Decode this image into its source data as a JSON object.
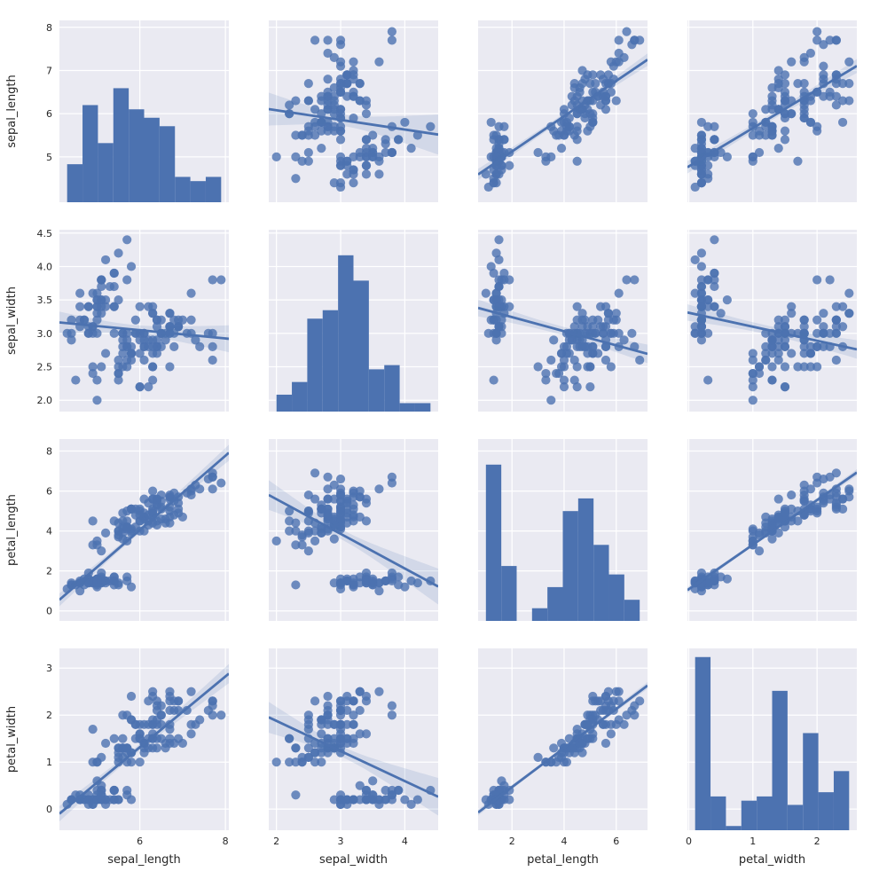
{
  "style": {
    "figure_bg": "#ffffff",
    "axes_bg": "#eaeaf2",
    "grid_color": "#ffffff",
    "grid_width": 1.25,
    "accent": "#4c72b0",
    "text_color": "#262626",
    "point_radius": 5.1,
    "point_alpha": 0.8,
    "line_width": 2.8,
    "band_alpha": 0.15,
    "tick_font_size": 11,
    "label_font_size": 13
  },
  "chart_data": {
    "type": "scatter",
    "subtype": "pairplot-regression",
    "title": "",
    "diag": "hist",
    "offdiag": "scatter+regression+ci",
    "hist_bins": 10,
    "diag_count_max": 43.05,
    "legend": null,
    "grid": true,
    "variables": [
      "sepal_length",
      "sepal_width",
      "petal_length",
      "petal_width"
    ],
    "axes": {
      "sepal_length": {
        "label": "sepal_length",
        "x_range": [
          4.12,
          8.08
        ],
        "y_range": [
          3.95,
          8.16
        ],
        "x_ticks": [
          6,
          8
        ],
        "x_tick_labels": [
          "6",
          "8"
        ],
        "y_ticks": [
          5,
          6,
          7,
          8
        ],
        "y_tick_labels": [
          "5",
          "6",
          "7",
          "8"
        ]
      },
      "sepal_width": {
        "label": "sepal_width",
        "x_range": [
          1.88,
          4.52
        ],
        "y_range": [
          1.83,
          4.55
        ],
        "x_ticks": [
          2,
          3,
          4
        ],
        "x_tick_labels": [
          "2",
          "3",
          "4"
        ],
        "y_ticks": [
          2.0,
          2.5,
          3.0,
          3.5,
          4.0,
          4.5
        ],
        "y_tick_labels": [
          "2.0",
          "2.5",
          "3.0",
          "3.5",
          "4.0",
          "4.5"
        ]
      },
      "petal_length": {
        "label": "petal_length",
        "x_range": [
          0.7,
          7.2
        ],
        "y_range": [
          -0.5,
          8.6
        ],
        "x_ticks": [
          2,
          4,
          6
        ],
        "x_tick_labels": [
          "2",
          "4",
          "6"
        ],
        "y_ticks": [
          0,
          2,
          4,
          6,
          8
        ],
        "y_tick_labels": [
          "0",
          "2",
          "4",
          "6",
          "8"
        ]
      },
      "petal_width": {
        "label": "petal_width",
        "x_range": [
          -0.02,
          2.62
        ],
        "y_range": [
          -0.45,
          3.42
        ],
        "x_ticks": [
          0,
          1,
          2
        ],
        "x_tick_labels": [
          "0",
          "1",
          "2"
        ],
        "y_ticks": [
          0,
          1,
          2,
          3
        ],
        "y_tick_labels": [
          "0",
          "1",
          "2",
          "3"
        ]
      }
    },
    "data": {
      "sepal_length": [
        5.1,
        4.9,
        4.7,
        4.6,
        5.0,
        5.4,
        4.6,
        5.0,
        4.4,
        4.9,
        5.4,
        4.8,
        4.8,
        4.3,
        5.8,
        5.7,
        5.4,
        5.1,
        5.7,
        5.1,
        5.4,
        5.1,
        4.6,
        5.1,
        4.8,
        5.0,
        5.0,
        5.2,
        5.2,
        4.7,
        4.8,
        5.4,
        5.2,
        5.5,
        4.9,
        5.0,
        5.5,
        4.9,
        4.4,
        5.1,
        5.0,
        4.5,
        4.4,
        5.0,
        5.1,
        4.8,
        5.1,
        4.6,
        5.3,
        5.0,
        7.0,
        6.4,
        6.9,
        5.5,
        6.5,
        5.7,
        6.3,
        4.9,
        6.6,
        5.2,
        5.0,
        5.9,
        6.0,
        6.1,
        5.6,
        6.7,
        5.6,
        5.8,
        6.2,
        5.6,
        5.9,
        6.1,
        6.3,
        6.1,
        6.4,
        6.6,
        6.8,
        6.7,
        6.0,
        5.7,
        5.5,
        5.5,
        5.8,
        6.0,
        5.4,
        6.0,
        6.7,
        6.3,
        5.6,
        5.5,
        5.5,
        6.1,
        5.8,
        5.0,
        5.6,
        5.7,
        5.7,
        6.2,
        5.1,
        5.7,
        6.3,
        5.8,
        7.1,
        6.3,
        6.5,
        7.6,
        4.9,
        7.3,
        6.7,
        7.2,
        6.5,
        6.4,
        6.8,
        5.7,
        5.8,
        6.4,
        6.5,
        7.7,
        7.7,
        6.0,
        6.9,
        5.6,
        7.7,
        6.3,
        6.7,
        7.2,
        6.2,
        6.1,
        6.4,
        7.2,
        7.4,
        7.9,
        6.4,
        6.3,
        6.1,
        7.7,
        6.3,
        6.4,
        6.0,
        6.9,
        6.7,
        6.9,
        5.8,
        6.8,
        6.7,
        6.7,
        6.3,
        6.5,
        6.2,
        5.9
      ],
      "sepal_width": [
        3.5,
        3.0,
        3.2,
        3.1,
        3.6,
        3.9,
        3.4,
        3.4,
        2.9,
        3.1,
        3.7,
        3.4,
        3.0,
        3.0,
        4.0,
        4.4,
        3.9,
        3.5,
        3.8,
        3.8,
        3.4,
        3.7,
        3.6,
        3.3,
        3.4,
        3.0,
        3.4,
        3.5,
        3.4,
        3.2,
        3.1,
        3.4,
        4.1,
        4.2,
        3.1,
        3.2,
        3.5,
        3.6,
        3.0,
        3.4,
        3.5,
        2.3,
        3.2,
        3.5,
        3.8,
        3.0,
        3.8,
        3.2,
        3.7,
        3.3,
        3.2,
        3.2,
        3.1,
        2.3,
        2.8,
        2.8,
        3.3,
        2.4,
        2.9,
        2.7,
        2.0,
        3.0,
        2.2,
        2.9,
        2.9,
        3.1,
        3.0,
        2.7,
        2.2,
        2.5,
        3.2,
        2.8,
        2.5,
        2.8,
        2.9,
        3.0,
        2.8,
        3.0,
        2.9,
        2.6,
        2.4,
        2.4,
        2.7,
        2.7,
        3.0,
        3.4,
        3.1,
        2.3,
        3.0,
        2.5,
        2.6,
        3.0,
        2.6,
        2.3,
        2.7,
        3.0,
        2.9,
        2.9,
        2.5,
        2.8,
        3.3,
        2.7,
        3.0,
        2.9,
        3.0,
        3.0,
        2.5,
        2.9,
        2.5,
        3.6,
        3.2,
        2.7,
        3.0,
        2.5,
        2.8,
        3.2,
        3.0,
        3.8,
        2.6,
        2.2,
        3.2,
        2.8,
        2.8,
        2.7,
        3.3,
        3.2,
        2.8,
        3.0,
        2.8,
        3.0,
        2.8,
        3.8,
        2.8,
        2.8,
        2.6,
        3.0,
        3.4,
        3.1,
        3.0,
        3.1,
        3.1,
        3.1,
        2.7,
        3.2,
        3.3,
        3.0,
        2.5,
        3.0,
        3.4,
        3.0
      ],
      "petal_length": [
        1.4,
        1.4,
        1.3,
        1.5,
        1.4,
        1.7,
        1.4,
        1.5,
        1.4,
        1.5,
        1.5,
        1.6,
        1.4,
        1.1,
        1.2,
        1.5,
        1.3,
        1.4,
        1.7,
        1.5,
        1.7,
        1.5,
        1.0,
        1.7,
        1.9,
        1.6,
        1.6,
        1.5,
        1.4,
        1.6,
        1.6,
        1.5,
        1.5,
        1.4,
        1.5,
        1.2,
        1.3,
        1.4,
        1.3,
        1.5,
        1.3,
        1.3,
        1.3,
        1.6,
        1.9,
        1.4,
        1.6,
        1.4,
        1.5,
        1.4,
        4.7,
        4.5,
        4.9,
        4.0,
        4.6,
        4.5,
        4.7,
        3.3,
        4.6,
        3.9,
        3.5,
        4.2,
        4.0,
        4.7,
        3.6,
        4.4,
        4.5,
        4.1,
        4.5,
        3.9,
        4.8,
        4.0,
        4.9,
        4.7,
        4.3,
        4.4,
        4.8,
        5.0,
        4.5,
        3.5,
        3.8,
        3.7,
        3.9,
        5.1,
        4.5,
        4.5,
        4.7,
        4.4,
        4.1,
        4.0,
        4.4,
        4.6,
        4.0,
        3.3,
        4.2,
        4.2,
        4.2,
        4.3,
        3.0,
        4.1,
        6.0,
        5.1,
        5.9,
        5.6,
        5.8,
        6.6,
        4.5,
        6.3,
        5.8,
        6.1,
        5.1,
        5.3,
        5.5,
        5.0,
        5.1,
        5.3,
        5.5,
        6.7,
        6.9,
        5.0,
        5.7,
        4.9,
        6.7,
        4.9,
        5.7,
        6.0,
        4.8,
        4.9,
        5.6,
        5.8,
        6.1,
        6.4,
        5.6,
        5.1,
        5.6,
        6.1,
        5.6,
        5.5,
        4.8,
        5.4,
        5.6,
        5.1,
        5.1,
        5.9,
        5.7,
        5.2,
        5.0,
        5.2,
        5.4,
        5.1
      ],
      "petal_width": [
        0.2,
        0.2,
        0.2,
        0.2,
        0.2,
        0.4,
        0.3,
        0.2,
        0.2,
        0.1,
        0.2,
        0.2,
        0.1,
        0.1,
        0.2,
        0.4,
        0.4,
        0.3,
        0.3,
        0.3,
        0.2,
        0.4,
        0.2,
        0.5,
        0.2,
        0.2,
        0.4,
        0.2,
        0.2,
        0.2,
        0.2,
        0.4,
        0.1,
        0.2,
        0.2,
        0.2,
        0.2,
        0.1,
        0.2,
        0.2,
        0.3,
        0.3,
        0.2,
        0.6,
        0.4,
        0.3,
        0.2,
        0.2,
        0.2,
        0.2,
        1.4,
        1.5,
        1.5,
        1.3,
        1.5,
        1.3,
        1.6,
        1.0,
        1.3,
        1.4,
        1.0,
        1.5,
        1.0,
        1.4,
        1.3,
        1.4,
        1.5,
        1.0,
        1.5,
        1.1,
        1.8,
        1.3,
        1.5,
        1.2,
        1.3,
        1.4,
        1.4,
        1.7,
        1.5,
        1.0,
        1.1,
        1.0,
        1.2,
        1.6,
        1.5,
        1.6,
        1.5,
        1.3,
        1.3,
        1.3,
        1.2,
        1.4,
        1.2,
        1.0,
        1.3,
        1.2,
        1.3,
        1.3,
        1.1,
        1.3,
        2.5,
        1.9,
        2.1,
        1.8,
        2.2,
        2.1,
        1.7,
        1.8,
        1.8,
        2.5,
        2.0,
        1.9,
        2.1,
        2.0,
        2.4,
        2.3,
        1.8,
        2.2,
        2.3,
        1.5,
        2.3,
        2.0,
        2.0,
        1.8,
        2.1,
        1.8,
        1.8,
        1.8,
        2.1,
        1.6,
        1.9,
        2.0,
        2.2,
        1.5,
        1.4,
        2.3,
        2.4,
        1.8,
        1.8,
        2.1,
        2.4,
        2.3,
        1.9,
        2.3,
        2.5,
        2.3,
        1.9,
        2.0,
        2.3,
        1.8
      ]
    }
  }
}
